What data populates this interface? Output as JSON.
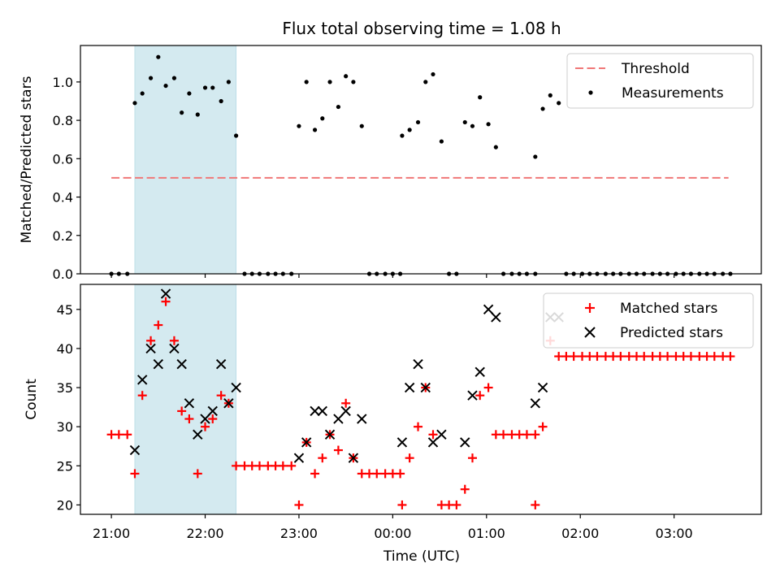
{
  "figure": {
    "title": "Flux total observing time = 1.08 h",
    "colors": {
      "threshold": "#f07878",
      "measurement": "#000000",
      "matched": "#ff0000",
      "predicted": "#000000",
      "shade": "#d4eaf0"
    }
  },
  "chart_data": [
    {
      "type": "scatter",
      "panel": "top",
      "ylabel": "Matched/Predicted stars",
      "xlabel": "",
      "x_unit": "hours since 21:00 UTC",
      "xlim": [
        -0.33,
        6.93
      ],
      "ylim": [
        0,
        1.19
      ],
      "yticks": [
        0.0,
        0.2,
        0.4,
        0.6,
        0.8,
        1.0
      ],
      "shaded_interval": [
        0.25,
        1.33
      ],
      "grid": false,
      "legend": {
        "placement": "top-right",
        "entries": [
          "Threshold",
          "Measurements"
        ]
      },
      "threshold": {
        "name": "Threshold",
        "value": 0.5,
        "x_range": [
          0.0,
          6.58
        ],
        "style": "dashed"
      },
      "series": [
        {
          "name": "Measurements",
          "points": [
            [
              0.0,
              0
            ],
            [
              0.08,
              0
            ],
            [
              0.17,
              0
            ],
            [
              0.25,
              0.89
            ],
            [
              0.33,
              0.94
            ],
            [
              0.42,
              1.02
            ],
            [
              0.5,
              1.13
            ],
            [
              0.58,
              0.98
            ],
            [
              0.67,
              1.02
            ],
            [
              0.75,
              0.84
            ],
            [
              0.83,
              0.94
            ],
            [
              0.92,
              0.83
            ],
            [
              1.0,
              0.97
            ],
            [
              1.08,
              0.97
            ],
            [
              1.17,
              0.9
            ],
            [
              1.25,
              1.0
            ],
            [
              1.33,
              0.72
            ],
            [
              1.42,
              0
            ],
            [
              1.5,
              0
            ],
            [
              1.58,
              0
            ],
            [
              1.67,
              0
            ],
            [
              1.75,
              0
            ],
            [
              1.83,
              0
            ],
            [
              1.92,
              0
            ],
            [
              2.0,
              0.77
            ],
            [
              2.08,
              1.0
            ],
            [
              2.17,
              0.75
            ],
            [
              2.25,
              0.81
            ],
            [
              2.33,
              1.0
            ],
            [
              2.42,
              0.87
            ],
            [
              2.5,
              1.03
            ],
            [
              2.58,
              1.0
            ],
            [
              2.67,
              0.77
            ],
            [
              2.75,
              0
            ],
            [
              2.83,
              0
            ],
            [
              2.92,
              0
            ],
            [
              3.0,
              0
            ],
            [
              3.08,
              0
            ],
            [
              3.1,
              0.72
            ],
            [
              3.18,
              0.75
            ],
            [
              3.27,
              0.79
            ],
            [
              3.35,
              1.0
            ],
            [
              3.43,
              1.04
            ],
            [
              3.52,
              0.69
            ],
            [
              3.6,
              0
            ],
            [
              3.68,
              0
            ],
            [
              3.77,
              0.79
            ],
            [
              3.85,
              0.77
            ],
            [
              3.93,
              0.92
            ],
            [
              4.02,
              0.78
            ],
            [
              4.1,
              0.66
            ],
            [
              4.18,
              0
            ],
            [
              4.27,
              0
            ],
            [
              4.35,
              0
            ],
            [
              4.43,
              0
            ],
            [
              4.52,
              0
            ],
            [
              4.52,
              0.61
            ],
            [
              4.6,
              0.86
            ],
            [
              4.68,
              0.93
            ],
            [
              4.77,
              0.89
            ],
            [
              4.85,
              0
            ],
            [
              4.93,
              0
            ],
            [
              5.02,
              0
            ],
            [
              5.1,
              0
            ],
            [
              5.18,
              0
            ],
            [
              5.27,
              0
            ],
            [
              5.35,
              0
            ],
            [
              5.43,
              0
            ],
            [
              5.52,
              0
            ],
            [
              5.6,
              0
            ],
            [
              5.68,
              0
            ],
            [
              5.77,
              0
            ],
            [
              5.85,
              0
            ],
            [
              5.93,
              0
            ],
            [
              6.02,
              0
            ],
            [
              6.1,
              0
            ],
            [
              6.18,
              0
            ],
            [
              6.27,
              0
            ],
            [
              6.35,
              0
            ],
            [
              6.43,
              0
            ],
            [
              6.52,
              0
            ],
            [
              6.6,
              0
            ]
          ]
        }
      ]
    },
    {
      "type": "scatter",
      "panel": "bottom",
      "ylabel": "Count",
      "xlabel": "Time (UTC)",
      "x_unit": "hours since 21:00 UTC",
      "xlim": [
        -0.33,
        6.93
      ],
      "ylim": [
        18.8,
        48.2
      ],
      "yticks": [
        20,
        25,
        30,
        35,
        40,
        45
      ],
      "xticks": [
        {
          "value": 0,
          "label": "21:00"
        },
        {
          "value": 1,
          "label": "22:00"
        },
        {
          "value": 2,
          "label": "23:00"
        },
        {
          "value": 3,
          "label": "00:00"
        },
        {
          "value": 4,
          "label": "01:00"
        },
        {
          "value": 5,
          "label": "02:00"
        },
        {
          "value": 6,
          "label": "03:00"
        }
      ],
      "shaded_interval": [
        0.25,
        1.33
      ],
      "grid": false,
      "legend": {
        "placement": "top-right",
        "entries": [
          "Matched stars",
          "Predicted stars"
        ]
      },
      "series": [
        {
          "name": "Matched stars",
          "marker": "plus",
          "points": [
            [
              0.0,
              29
            ],
            [
              0.08,
              29
            ],
            [
              0.17,
              29
            ],
            [
              0.25,
              24
            ],
            [
              0.33,
              34
            ],
            [
              0.42,
              41
            ],
            [
              0.5,
              43
            ],
            [
              0.58,
              46
            ],
            [
              0.67,
              41
            ],
            [
              0.75,
              32
            ],
            [
              0.83,
              31
            ],
            [
              0.92,
              24
            ],
            [
              1.0,
              30
            ],
            [
              1.08,
              31
            ],
            [
              1.17,
              34
            ],
            [
              1.25,
              33
            ],
            [
              1.33,
              25
            ],
            [
              1.42,
              25
            ],
            [
              1.5,
              25
            ],
            [
              1.58,
              25
            ],
            [
              1.67,
              25
            ],
            [
              1.75,
              25
            ],
            [
              1.83,
              25
            ],
            [
              1.92,
              25
            ],
            [
              2.0,
              20
            ],
            [
              2.08,
              28
            ],
            [
              2.17,
              24
            ],
            [
              2.25,
              26
            ],
            [
              2.33,
              29
            ],
            [
              2.42,
              27
            ],
            [
              2.5,
              33
            ],
            [
              2.58,
              26
            ],
            [
              2.67,
              24
            ],
            [
              2.75,
              24
            ],
            [
              2.83,
              24
            ],
            [
              2.92,
              24
            ],
            [
              3.0,
              24
            ],
            [
              3.08,
              24
            ],
            [
              3.1,
              20
            ],
            [
              3.18,
              26
            ],
            [
              3.27,
              30
            ],
            [
              3.35,
              35
            ],
            [
              3.43,
              29
            ],
            [
              3.52,
              20
            ],
            [
              3.6,
              20
            ],
            [
              3.68,
              20
            ],
            [
              3.77,
              22
            ],
            [
              3.85,
              26
            ],
            [
              3.93,
              34
            ],
            [
              4.02,
              35
            ],
            [
              4.1,
              29
            ],
            [
              4.18,
              29
            ],
            [
              4.27,
              29
            ],
            [
              4.35,
              29
            ],
            [
              4.43,
              29
            ],
            [
              4.52,
              29
            ],
            [
              4.52,
              20
            ],
            [
              4.6,
              30
            ],
            [
              4.68,
              41
            ],
            [
              4.77,
              39
            ],
            [
              4.85,
              39
            ],
            [
              4.93,
              39
            ],
            [
              5.02,
              39
            ],
            [
              5.1,
              39
            ],
            [
              5.18,
              39
            ],
            [
              5.27,
              39
            ],
            [
              5.35,
              39
            ],
            [
              5.43,
              39
            ],
            [
              5.52,
              39
            ],
            [
              5.6,
              39
            ],
            [
              5.68,
              39
            ],
            [
              5.77,
              39
            ],
            [
              5.85,
              39
            ],
            [
              5.93,
              39
            ],
            [
              6.02,
              39
            ],
            [
              6.1,
              39
            ],
            [
              6.18,
              39
            ],
            [
              6.27,
              39
            ],
            [
              6.35,
              39
            ],
            [
              6.43,
              39
            ],
            [
              6.52,
              39
            ],
            [
              6.6,
              39
            ]
          ]
        },
        {
          "name": "Predicted stars",
          "marker": "x",
          "points": [
            [
              0.25,
              27
            ],
            [
              0.33,
              36
            ],
            [
              0.42,
              40
            ],
            [
              0.5,
              38
            ],
            [
              0.58,
              47
            ],
            [
              0.67,
              40
            ],
            [
              0.75,
              38
            ],
            [
              0.83,
              33
            ],
            [
              0.92,
              29
            ],
            [
              1.0,
              31
            ],
            [
              1.08,
              32
            ],
            [
              1.17,
              38
            ],
            [
              1.25,
              33
            ],
            [
              1.33,
              35
            ],
            [
              2.0,
              26
            ],
            [
              2.08,
              28
            ],
            [
              2.17,
              32
            ],
            [
              2.25,
              32
            ],
            [
              2.33,
              29
            ],
            [
              2.42,
              31
            ],
            [
              2.5,
              32
            ],
            [
              2.58,
              26
            ],
            [
              2.67,
              31
            ],
            [
              3.1,
              28
            ],
            [
              3.18,
              35
            ],
            [
              3.27,
              38
            ],
            [
              3.35,
              35
            ],
            [
              3.43,
              28
            ],
            [
              3.52,
              29
            ],
            [
              3.77,
              28
            ],
            [
              3.85,
              34
            ],
            [
              3.93,
              37
            ],
            [
              4.02,
              45
            ],
            [
              4.1,
              44
            ],
            [
              4.52,
              33
            ],
            [
              4.6,
              35
            ],
            [
              4.68,
              44
            ],
            [
              4.77,
              44
            ]
          ]
        }
      ]
    }
  ]
}
